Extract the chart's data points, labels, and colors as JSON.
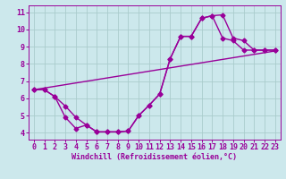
{
  "background_color": "#cce8ec",
  "grid_color": "#aacccc",
  "line_color": "#990099",
  "markersize": 2.5,
  "linewidth": 1.0,
  "xlabel": "Windchill (Refroidissement éolien,°C)",
  "xlabel_fontsize": 6,
  "tick_fontsize": 6,
  "ylim": [
    3.6,
    11.4
  ],
  "xlim": [
    -0.5,
    23.5
  ],
  "yticks": [
    4,
    5,
    6,
    7,
    8,
    9,
    10,
    11
  ],
  "xticks": [
    0,
    1,
    2,
    3,
    4,
    5,
    6,
    7,
    8,
    9,
    10,
    11,
    12,
    13,
    14,
    15,
    16,
    17,
    18,
    19,
    20,
    21,
    22,
    23
  ],
  "line1_x": [
    0,
    23
  ],
  "line1_y": [
    6.5,
    8.75
  ],
  "line2_x": [
    0,
    1,
    2,
    3,
    4,
    5,
    6,
    7,
    8,
    9,
    10,
    11,
    12,
    13,
    14,
    15,
    16,
    17,
    18,
    19,
    20,
    21,
    22,
    23
  ],
  "line2_y": [
    6.5,
    6.5,
    6.1,
    5.55,
    4.9,
    4.45,
    4.05,
    4.05,
    4.05,
    4.1,
    5.0,
    5.6,
    6.25,
    8.3,
    9.6,
    9.6,
    10.65,
    10.8,
    9.5,
    9.35,
    8.8,
    8.8,
    8.8,
    8.8
  ],
  "line3_x": [
    0,
    1,
    2,
    3,
    4,
    5,
    6,
    7,
    8,
    9,
    10,
    11,
    12,
    13,
    14,
    15,
    16,
    17,
    18,
    19,
    20,
    21,
    22,
    23
  ],
  "line3_y": [
    6.5,
    6.5,
    6.1,
    4.9,
    4.25,
    4.45,
    4.05,
    4.05,
    4.05,
    4.1,
    5.0,
    5.6,
    6.25,
    8.3,
    9.6,
    9.6,
    10.65,
    10.8,
    10.85,
    9.5,
    9.35,
    8.8,
    8.8,
    8.8
  ]
}
